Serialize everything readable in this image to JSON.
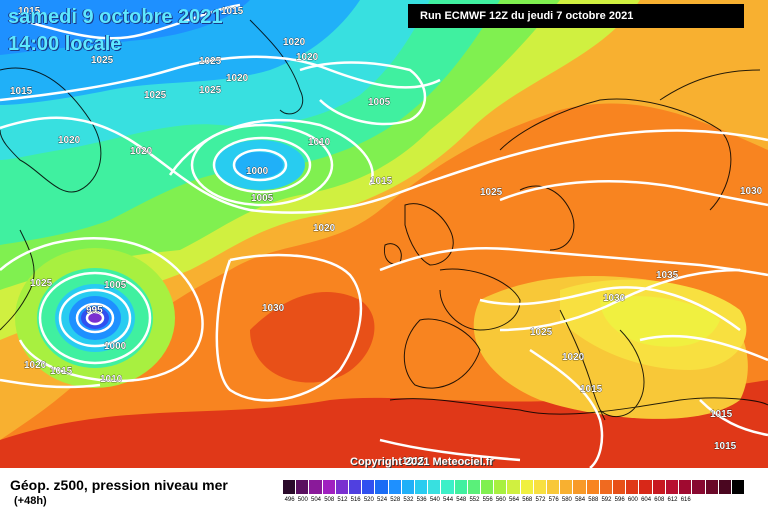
{
  "title": {
    "date": "samedi 9 octobre 2021",
    "time": "14:00 locale"
  },
  "run_info": "Run ECMWF 12Z du jeudi 7 octobre 2021",
  "copyright": "Copyright 2021 Meteociel.fr",
  "legend": {
    "caption": "Géop. z500, pression niveau mer",
    "lead_time": "(+48h)",
    "colors": [
      "#2a0a2a",
      "#5a1060",
      "#8a1a9a",
      "#a020c0",
      "#7a30d0",
      "#5040e0",
      "#3050f0",
      "#1a6cf5",
      "#1e90ff",
      "#20b0f8",
      "#28ccf0",
      "#38e0e0",
      "#3cf0c8",
      "#40f0a0",
      "#5af07a",
      "#80f050",
      "#a8f040",
      "#d0f040",
      "#f0f040",
      "#f8e040",
      "#f8c838",
      "#f8b030",
      "#f89a28",
      "#f88420",
      "#f06a20",
      "#e85018",
      "#e03818",
      "#d82818",
      "#c81820",
      "#b81030",
      "#a00a30",
      "#880830",
      "#6a0828",
      "#4a0620",
      "#000000"
    ],
    "ticks": [
      "496",
      "500",
      "504",
      "508",
      "512",
      "516",
      "520",
      "524",
      "528",
      "532",
      "536",
      "540",
      "544",
      "548",
      "552",
      "556",
      "560",
      "564",
      "568",
      "572",
      "576",
      "580",
      "584",
      "588",
      "592",
      "596",
      "600",
      "604",
      "608",
      "612",
      "616"
    ]
  },
  "pressure_labels": [
    {
      "text": "1015"
    },
    {
      "text": "1015"
    },
    {
      "text": "1020"
    },
    {
      "text": "1020"
    },
    {
      "text": "1025"
    },
    {
      "text": "1025"
    },
    {
      "text": "1020"
    },
    {
      "text": "1025"
    },
    {
      "text": "1025"
    },
    {
      "text": "1005"
    },
    {
      "text": "1020"
    },
    {
      "text": "1020"
    },
    {
      "text": "1010"
    },
    {
      "text": "1000"
    },
    {
      "text": "1005"
    },
    {
      "text": "1015"
    },
    {
      "text": "1025"
    },
    {
      "text": "1030"
    },
    {
      "text": "1020"
    },
    {
      "text": "1025"
    },
    {
      "text": "1005"
    },
    {
      "text": "995"
    },
    {
      "text": "1000"
    },
    {
      "text": "1030"
    },
    {
      "text": "1020"
    },
    {
      "text": "1015"
    },
    {
      "text": "1010"
    },
    {
      "text": "1035"
    },
    {
      "text": "1030"
    },
    {
      "text": "1025"
    },
    {
      "text": "1020"
    },
    {
      "text": "1015"
    },
    {
      "text": "1015"
    },
    {
      "text": "1015"
    },
    {
      "text": "1015"
    },
    {
      "text": "1015"
    }
  ]
}
